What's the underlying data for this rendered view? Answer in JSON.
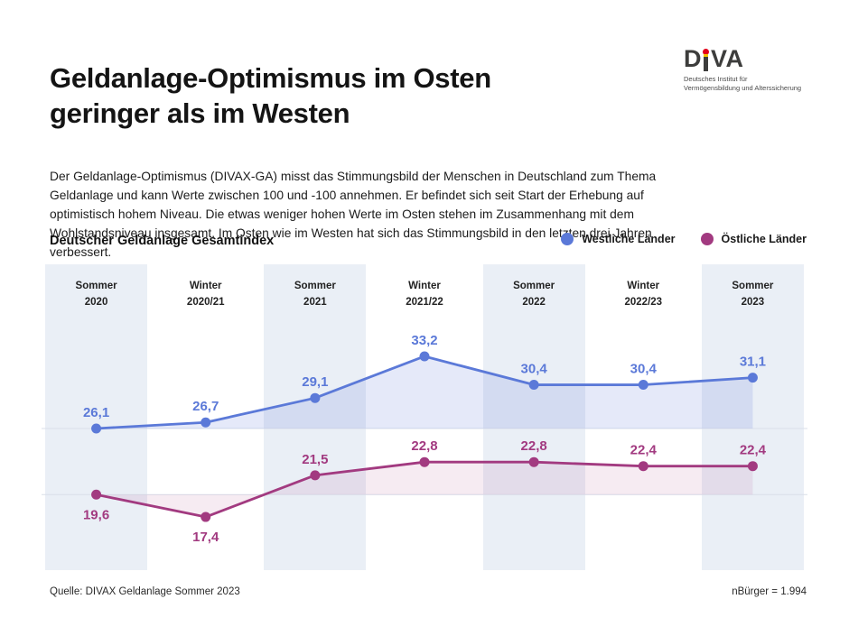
{
  "header": {
    "title": "Geldanlage-Optimismus im Osten geringer als im Westen",
    "logo": {
      "part1": "D",
      "part2": "VA",
      "sub_line1": "Deutsches Institut für",
      "sub_line2": "Vermögensbildung und Alterssicherung",
      "dot_color": "#e2001a",
      "gold_color": "#f4c500"
    }
  },
  "intro": "Der Geldanlage-Optimismus (DIVAX-GA) misst das Stimmungsbild der Menschen in Deutschland zum Thema Geldanlage und kann Werte zwischen 100 und -100 annehmen. Er befindet sich seit Start der Erhebung auf optimistisch hohem Niveau. Die etwas weniger hohen Werte im Osten stehen im Zusammenhang mit dem Wohlstandsniveau insgesamt. Im Osten wie im Westen hat sich das Stimmungsbild in den letzten drei Jahren verbessert.",
  "chart": {
    "subtitle": "Deutscher Geldanlage Gesamtindex",
    "legend": [
      {
        "label": "Westliche Länder",
        "color": "#5b79d8"
      },
      {
        "label": "Östliche Länder",
        "color": "#a23a80"
      }
    ]
  },
  "chart_data": {
    "type": "line",
    "title": "Deutscher Geldanlage Gesamtindex",
    "categories": [
      [
        "Sommer",
        "2020"
      ],
      [
        "Winter",
        "2020/21"
      ],
      [
        "Sommer",
        "2021"
      ],
      [
        "Winter",
        "2021/22"
      ],
      [
        "Sommer",
        "2022"
      ],
      [
        "Winter",
        "2022/23"
      ],
      [
        "Sommer",
        "2023"
      ]
    ],
    "series": [
      {
        "name": "Westliche Länder",
        "color": "#5b79d8",
        "fill": "rgba(91,121,216,0.16)",
        "values": [
          26.1,
          26.7,
          29.1,
          33.2,
          30.4,
          30.4,
          31.1
        ],
        "label_below": [
          false,
          false,
          false,
          false,
          false,
          false,
          false
        ]
      },
      {
        "name": "Östliche Länder",
        "color": "#a23a80",
        "fill": "rgba(162,58,128,0.10)",
        "values": [
          19.6,
          17.4,
          21.5,
          22.8,
          22.8,
          22.4,
          22.4
        ],
        "label_below": [
          true,
          true,
          false,
          false,
          false,
          false,
          false
        ]
      }
    ],
    "decimal_separator": ",",
    "band_color": "#eaeff6",
    "grid": "horizontal baseline at each series start value",
    "legend_position": "top-right",
    "y_axis": "hidden, values labeled at points",
    "value_range": [
      -100,
      100
    ]
  },
  "footer": {
    "source": "Quelle: DIVAX Geldanlage Sommer 2023",
    "n_label": "nBürger = 1.994"
  }
}
